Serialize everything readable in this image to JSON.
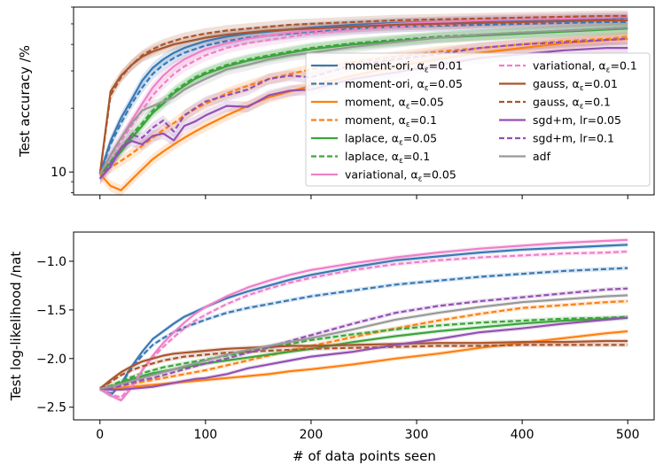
{
  "chart_data": [
    {
      "type": "line",
      "ylabel": "Test accuracy /%",
      "yscale": "log",
      "ylim": [
        7.8,
        60
      ],
      "xlim": [
        -25,
        525
      ],
      "yticks": [
        {
          "value": 10,
          "label": "10"
        }
      ],
      "x": [
        0,
        10,
        20,
        30,
        40,
        50,
        60,
        70,
        80,
        90,
        100,
        120,
        140,
        160,
        180,
        200,
        240,
        280,
        320,
        360,
        400,
        440,
        480,
        500
      ],
      "series": [
        {
          "name": "moment-ori, α_ε=0.01",
          "label_text": "moment-ori, α",
          "label_sub": "ε",
          "label_val": "=0.01",
          "color": "#3a78b5",
          "dash": "solid",
          "values": [
            9.8,
            14,
            18,
            22,
            27,
            31,
            34,
            36.5,
            38.5,
            40,
            41.5,
            43.5,
            45,
            46,
            47,
            48,
            49.5,
            50.5,
            51,
            51.5,
            52,
            52.5,
            53,
            53
          ]
        },
        {
          "name": "moment-ori, α_ε=0.05",
          "label_text": "moment-ori, α",
          "label_sub": "ε",
          "label_val": "=0.05",
          "color": "#3a78b5",
          "dash": "dashed",
          "values": [
            9.8,
            13.5,
            17,
            21,
            25,
            29,
            32,
            34.5,
            36.5,
            38,
            39.5,
            41.5,
            43,
            44,
            45,
            46,
            47.5,
            48.5,
            49,
            49.5,
            50,
            50.5,
            51,
            51
          ]
        },
        {
          "name": "moment, α_ε=0.05",
          "label_text": "moment, α",
          "label_sub": "ε",
          "label_val": "=0.05",
          "color": "#ff7f0e",
          "dash": "solid",
          "values": [
            9.8,
            8.6,
            8.2,
            9.2,
            10.3,
            11.5,
            12.5,
            13.5,
            14.5,
            15.5,
            16.5,
            18.5,
            20.5,
            22.5,
            24,
            25.5,
            28.5,
            31.5,
            34,
            36.5,
            38.5,
            40.5,
            42,
            42.5
          ]
        },
        {
          "name": "moment, α_ε=0.1",
          "label_text": "moment, α",
          "label_sub": "ε",
          "label_val": "=0.1",
          "color": "#ff7f0e",
          "dash": "dashed",
          "values": [
            9.8,
            10.5,
            11.3,
            12.2,
            13.3,
            14.5,
            15.8,
            17,
            18.5,
            19.8,
            21,
            23.5,
            25.5,
            27.5,
            29,
            30.5,
            33,
            35,
            37,
            38.5,
            40,
            41.5,
            42.5,
            43.5
          ]
        },
        {
          "name": "laplace, α_ε=0.05",
          "label_text": "laplace, α",
          "label_sub": "ε",
          "label_val": "=0.05",
          "color": "#3ba53b",
          "dash": "solid",
          "values": [
            9.8,
            11,
            12.5,
            14.5,
            16.5,
            19,
            21,
            23.5,
            25.5,
            27.5,
            29,
            31.5,
            33.5,
            35,
            36.5,
            38,
            40,
            41.5,
            43,
            44,
            45,
            46,
            47,
            47.5
          ]
        },
        {
          "name": "laplace, α_ε=0.1",
          "label_text": "laplace, α",
          "label_sub": "ε",
          "label_val": "=0.1",
          "color": "#3ba53b",
          "dash": "dashed",
          "values": [
            9.8,
            11.2,
            13,
            15,
            17,
            19.5,
            21.5,
            24,
            26,
            28,
            29.5,
            32,
            34,
            35.5,
            37,
            38.5,
            40.5,
            42,
            43.5,
            44.5,
            45.5,
            46.5,
            47.5,
            48
          ]
        },
        {
          "name": "variational, α_ε=0.05",
          "label_text": "variational, α",
          "label_sub": "ε",
          "label_val": "=0.05",
          "color": "#f07fc7",
          "dash": "solid",
          "values": [
            9.8,
            12,
            14.5,
            17.5,
            21,
            25,
            28.5,
            31.5,
            34,
            36,
            38,
            40.5,
            42.5,
            44,
            45.5,
            46.5,
            48.5,
            50,
            51,
            52,
            52.5,
            53,
            53.5,
            54
          ]
        },
        {
          "name": "variational, α_ε=0.1",
          "label_text": "variational, α",
          "label_sub": "ε",
          "label_val": "=0.1",
          "color": "#f07fc7",
          "dash": "dashed",
          "values": [
            9.8,
            11.8,
            14,
            16.5,
            19.5,
            23,
            26,
            29,
            31.5,
            33.5,
            35.5,
            38.5,
            40.5,
            42,
            43.5,
            45,
            47,
            48.5,
            49.5,
            50.5,
            51,
            51.5,
            52,
            52.5
          ]
        },
        {
          "name": "gauss, α_ε=0.01",
          "label_text": "gauss, α",
          "label_sub": "ε",
          "label_val": "=0.01",
          "color": "#a9552e",
          "dash": "solid",
          "values": [
            9.8,
            24,
            28.5,
            32,
            35,
            37,
            38.5,
            40,
            41,
            42,
            43,
            44.5,
            45.5,
            46.5,
            47,
            47.5,
            48.5,
            49.5,
            50,
            50.5,
            51,
            51.5,
            52,
            52
          ]
        },
        {
          "name": "gauss, α_ε=0.1",
          "label_text": "gauss, α",
          "label_sub": "ε",
          "label_val": "=0.1",
          "color": "#a9552e",
          "dash": "dashed",
          "values": [
            9.8,
            23,
            28,
            32,
            35.5,
            38,
            40,
            41.5,
            43,
            44,
            45,
            46.5,
            47.5,
            48.5,
            49.5,
            50,
            51,
            52,
            52.5,
            53,
            53.5,
            54,
            54.5,
            54.5
          ]
        },
        {
          "name": "sgd+m, lr=0.05",
          "label_text": "sgd+m, lr=0.05",
          "label_sub": "",
          "label_val": "",
          "color": "#9351b0",
          "dash": "solid",
          "values": [
            9.3,
            10.6,
            13,
            14,
            13.5,
            14.8,
            15.2,
            14.1,
            16.5,
            17.3,
            18.5,
            20.5,
            20.3,
            23,
            24.2,
            24.5,
            27.5,
            29.5,
            32,
            34.5,
            36,
            37.5,
            38.5,
            38.5
          ]
        },
        {
          "name": "sgd+m, lr=0.1",
          "label_text": "sgd+m, lr=0.1",
          "label_sub": "",
          "label_val": "",
          "color": "#9351b0",
          "dash": "dashed",
          "values": [
            9.3,
            11,
            12.8,
            15,
            14.5,
            16.2,
            17.5,
            15.5,
            18.5,
            20,
            21.5,
            23,
            24.5,
            27.5,
            28.5,
            28,
            32,
            34,
            36,
            38.5,
            40,
            41,
            42,
            42.5
          ]
        },
        {
          "name": "adf",
          "label_text": "adf",
          "label_sub": "",
          "label_val": "",
          "color": "#999999",
          "dash": "solid",
          "values": [
            9.8,
            12,
            14.5,
            17,
            19.5,
            20.5,
            21.5,
            22.5,
            24.5,
            26,
            27.5,
            30.5,
            32,
            34,
            35.5,
            36.5,
            39,
            41,
            43,
            44.5,
            45.5,
            46.5,
            47.5,
            48
          ]
        }
      ]
    },
    {
      "type": "line",
      "ylabel": "Test log-likelihood /nat",
      "xlabel": "# of data points seen",
      "ylim": [
        -2.63,
        -0.7
      ],
      "xlim": [
        -25,
        525
      ],
      "yticks": [
        {
          "value": -1.0,
          "label": "−1.0"
        },
        {
          "value": -1.5,
          "label": "−1.5"
        },
        {
          "value": -2.0,
          "label": "−2.0"
        },
        {
          "value": -2.5,
          "label": "−2.5"
        }
      ],
      "xticks": [
        {
          "value": 0,
          "label": "0"
        },
        {
          "value": 100,
          "label": "100"
        },
        {
          "value": 200,
          "label": "200"
        },
        {
          "value": 300,
          "label": "300"
        },
        {
          "value": 400,
          "label": "400"
        },
        {
          "value": 500,
          "label": "500"
        }
      ],
      "x": [
        0,
        10,
        20,
        30,
        40,
        50,
        60,
        70,
        80,
        90,
        100,
        120,
        140,
        160,
        180,
        200,
        240,
        280,
        320,
        360,
        400,
        440,
        480,
        500
      ],
      "series": [
        {
          "name": "moment-ori, α_ε=0.01",
          "color": "#3a78b5",
          "dash": "solid",
          "values": [
            -2.31,
            -2.38,
            -2.26,
            -2.08,
            -1.93,
            -1.8,
            -1.72,
            -1.64,
            -1.57,
            -1.52,
            -1.47,
            -1.38,
            -1.31,
            -1.25,
            -1.19,
            -1.14,
            -1.06,
            -0.99,
            -0.95,
            -0.91,
            -0.88,
            -0.86,
            -0.84,
            -0.83
          ]
        },
        {
          "name": "moment-ori, α_ε=0.05",
          "color": "#3a78b5",
          "dash": "dashed",
          "values": [
            -2.31,
            -2.36,
            -2.26,
            -2.1,
            -1.97,
            -1.86,
            -1.79,
            -1.73,
            -1.68,
            -1.64,
            -1.6,
            -1.53,
            -1.48,
            -1.44,
            -1.4,
            -1.36,
            -1.3,
            -1.24,
            -1.2,
            -1.16,
            -1.13,
            -1.1,
            -1.08,
            -1.07
          ]
        },
        {
          "name": "moment, α_ε=0.05",
          "color": "#ff7f0e",
          "dash": "solid",
          "values": [
            -2.31,
            -2.31,
            -2.3,
            -2.29,
            -2.28,
            -2.27,
            -2.26,
            -2.25,
            -2.24,
            -2.23,
            -2.22,
            -2.2,
            -2.18,
            -2.16,
            -2.13,
            -2.11,
            -2.06,
            -2.0,
            -1.95,
            -1.89,
            -1.84,
            -1.79,
            -1.74,
            -1.72
          ]
        },
        {
          "name": "moment, α_ε=0.1",
          "color": "#ff7f0e",
          "dash": "dashed",
          "values": [
            -2.31,
            -2.3,
            -2.28,
            -2.26,
            -2.24,
            -2.22,
            -2.2,
            -2.18,
            -2.16,
            -2.14,
            -2.12,
            -2.07,
            -2.02,
            -1.97,
            -1.92,
            -1.87,
            -1.78,
            -1.69,
            -1.61,
            -1.54,
            -1.48,
            -1.45,
            -1.42,
            -1.41
          ]
        },
        {
          "name": "laplace, α_ε=0.05",
          "color": "#3ba53b",
          "dash": "solid",
          "values": [
            -2.31,
            -2.29,
            -2.25,
            -2.21,
            -2.18,
            -2.15,
            -2.13,
            -2.11,
            -2.09,
            -2.07,
            -2.05,
            -2.02,
            -1.99,
            -1.96,
            -1.93,
            -1.9,
            -1.83,
            -1.77,
            -1.72,
            -1.68,
            -1.64,
            -1.61,
            -1.59,
            -1.58
          ]
        },
        {
          "name": "laplace, α_ε=0.1",
          "color": "#3ba53b",
          "dash": "dashed",
          "values": [
            -2.31,
            -2.28,
            -2.23,
            -2.19,
            -2.15,
            -2.12,
            -2.09,
            -2.07,
            -2.05,
            -2.03,
            -2.01,
            -1.97,
            -1.93,
            -1.89,
            -1.85,
            -1.81,
            -1.75,
            -1.7,
            -1.66,
            -1.63,
            -1.61,
            -1.59,
            -1.58,
            -1.57
          ]
        },
        {
          "name": "variational, α_ε=0.05",
          "color": "#f07fc7",
          "dash": "solid",
          "values": [
            -2.31,
            -2.38,
            -2.43,
            -2.3,
            -2.12,
            -1.97,
            -1.84,
            -1.73,
            -1.63,
            -1.54,
            -1.47,
            -1.36,
            -1.27,
            -1.2,
            -1.14,
            -1.09,
            -1.02,
            -0.96,
            -0.91,
            -0.87,
            -0.84,
            -0.81,
            -0.79,
            -0.78
          ]
        },
        {
          "name": "variational, α_ε=0.1",
          "color": "#f07fc7",
          "dash": "dashed",
          "values": [
            -2.31,
            -2.37,
            -2.4,
            -2.28,
            -2.12,
            -1.99,
            -1.88,
            -1.78,
            -1.69,
            -1.61,
            -1.55,
            -1.44,
            -1.35,
            -1.28,
            -1.22,
            -1.17,
            -1.09,
            -1.03,
            -0.99,
            -0.96,
            -0.94,
            -0.92,
            -0.91,
            -0.9
          ]
        },
        {
          "name": "gauss, α_ε=0.01",
          "color": "#a9552e",
          "dash": "solid",
          "values": [
            -2.31,
            -2.22,
            -2.14,
            -2.08,
            -2.03,
            -2.0,
            -1.97,
            -1.95,
            -1.94,
            -1.93,
            -1.92,
            -1.9,
            -1.89,
            -1.88,
            -1.87,
            -1.87,
            -1.86,
            -1.85,
            -1.84,
            -1.84,
            -1.83,
            -1.83,
            -1.82,
            -1.82
          ]
        },
        {
          "name": "gauss, α_ε=0.1",
          "color": "#a9552e",
          "dash": "dashed",
          "values": [
            -2.31,
            -2.24,
            -2.17,
            -2.12,
            -2.08,
            -2.05,
            -2.02,
            -2.0,
            -1.98,
            -1.97,
            -1.96,
            -1.94,
            -1.93,
            -1.92,
            -1.91,
            -1.9,
            -1.89,
            -1.88,
            -1.87,
            -1.87,
            -1.86,
            -1.86,
            -1.86,
            -1.86
          ]
        },
        {
          "name": "sgd+m, lr=0.05",
          "color": "#9351b0",
          "dash": "solid",
          "values": [
            -2.31,
            -2.32,
            -2.32,
            -2.31,
            -2.3,
            -2.29,
            -2.27,
            -2.25,
            -2.23,
            -2.21,
            -2.2,
            -2.16,
            -2.1,
            -2.06,
            -2.02,
            -1.98,
            -1.93,
            -1.86,
            -1.8,
            -1.73,
            -1.69,
            -1.64,
            -1.6,
            -1.58
          ]
        },
        {
          "name": "sgd+m, lr=0.1",
          "color": "#9351b0",
          "dash": "dashed",
          "values": [
            -2.31,
            -2.3,
            -2.28,
            -2.25,
            -2.22,
            -2.2,
            -2.17,
            -2.14,
            -2.11,
            -2.08,
            -2.05,
            -2.0,
            -1.94,
            -1.88,
            -1.82,
            -1.76,
            -1.64,
            -1.53,
            -1.46,
            -1.41,
            -1.37,
            -1.33,
            -1.29,
            -1.28
          ]
        },
        {
          "name": "adf",
          "color": "#999999",
          "dash": "solid",
          "values": [
            -2.31,
            -2.29,
            -2.26,
            -2.23,
            -2.2,
            -2.17,
            -2.14,
            -2.11,
            -2.08,
            -2.05,
            -2.02,
            -1.96,
            -1.91,
            -1.87,
            -1.83,
            -1.79,
            -1.7,
            -1.6,
            -1.53,
            -1.47,
            -1.42,
            -1.39,
            -1.36,
            -1.35
          ]
        }
      ]
    }
  ]
}
